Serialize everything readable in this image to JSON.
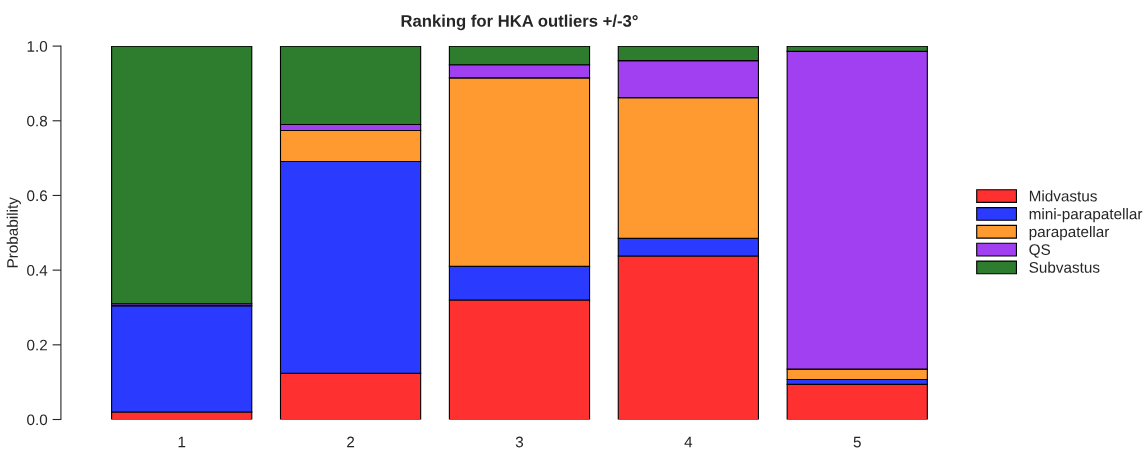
{
  "chart_data": {
    "type": "bar",
    "stacked": true,
    "title": "Ranking for HKA outliers +/-3°",
    "ylabel": "Probability",
    "categories": [
      "1",
      "2",
      "3",
      "4",
      "5"
    ],
    "series": [
      {
        "name": "Midvastus",
        "color": "#ff3030",
        "values": [
          0.02,
          0.124,
          0.32,
          0.438,
          0.094
        ]
      },
      {
        "name": "mini-parapatellar",
        "color": "#2a3aff",
        "values": [
          0.285,
          0.567,
          0.09,
          0.047,
          0.013
        ]
      },
      {
        "name": "parapatellar",
        "color": "#ff9a30",
        "values": [
          0,
          0.083,
          0.505,
          0.377,
          0.028
        ]
      },
      {
        "name": "QS",
        "color": "#a040f0",
        "values": [
          0.005,
          0.016,
          0.035,
          0.099,
          0.851
        ]
      },
      {
        "name": "Subvastus",
        "color": "#2e7d2e",
        "values": [
          0.69,
          0.21,
          0.05,
          0.039,
          0.014
        ]
      }
    ],
    "ylim": [
      0,
      1
    ],
    "yticks": [
      {
        "value": 0,
        "label": "0.0"
      },
      {
        "value": 0.2,
        "label": "0.2"
      },
      {
        "value": 0.4,
        "label": "0.4"
      },
      {
        "value": 0.6,
        "label": "0.6"
      },
      {
        "value": 0.8,
        "label": "0.8"
      },
      {
        "value": 1,
        "label": "1.0"
      }
    ],
    "legend": "right",
    "grid": false
  }
}
